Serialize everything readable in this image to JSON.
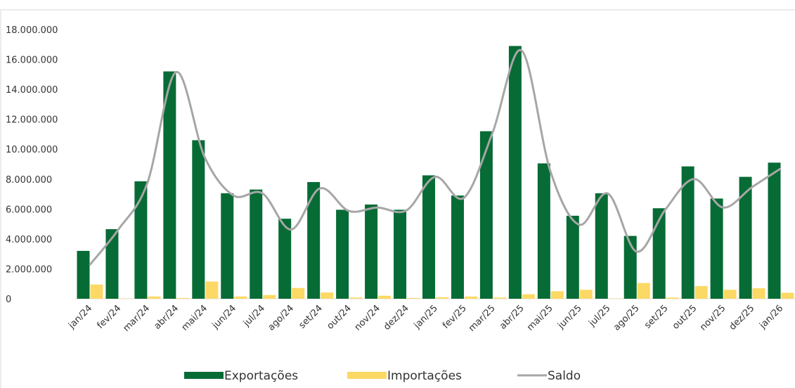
{
  "chart_data": {
    "type": "bar",
    "categories": [
      "jan/24",
      "fev/24",
      "mar/24",
      "abr/24",
      "mai/24",
      "jun/24",
      "jul/24",
      "ago/24",
      "set/24",
      "out/24",
      "nov/24",
      "dez/24",
      "jan/25",
      "fev/25",
      "mar/25",
      "abr/25",
      "mai/25",
      "jun/25",
      "jul/25",
      "ago/25",
      "set/25",
      "out/25",
      "nov/25",
      "dez/25",
      "jan/26"
    ],
    "series": [
      {
        "name": "Exportações",
        "color": "#076b35",
        "type": "bar",
        "values": [
          3200000,
          4650000,
          7850000,
          15200000,
          10600000,
          7050000,
          7300000,
          5350000,
          7800000,
          5950000,
          6300000,
          5950000,
          8250000,
          6900000,
          11200000,
          16900000,
          9050000,
          5550000,
          7050000,
          4200000,
          6050000,
          8850000,
          6700000,
          8150000,
          9100000
        ]
      },
      {
        "name": "Importações",
        "color": "#fcd965",
        "type": "bar",
        "values": [
          950000,
          20000,
          150000,
          50000,
          1150000,
          150000,
          250000,
          720000,
          420000,
          80000,
          200000,
          50000,
          100000,
          150000,
          80000,
          300000,
          500000,
          600000,
          20000,
          1050000,
          80000,
          850000,
          600000,
          700000,
          400000
        ]
      },
      {
        "name": "Saldo",
        "color": "#a6a6a6",
        "type": "line",
        "values": [
          2250000,
          4630000,
          7700000,
          15150000,
          9450000,
          6900000,
          7050000,
          4630000,
          7380000,
          5870000,
          6100000,
          5900000,
          8150000,
          6750000,
          11120000,
          16600000,
          8550000,
          4950000,
          7030000,
          3150000,
          5970000,
          8000000,
          6100000,
          7450000,
          8700000
        ]
      }
    ],
    "ylim": [
      0,
      18000000
    ],
    "yticks": [
      {
        "value": 0,
        "label": "0"
      },
      {
        "value": 2000000,
        "label": "2.000.000"
      },
      {
        "value": 4000000,
        "label": "4.000.000"
      },
      {
        "value": 6000000,
        "label": "6.000.000"
      },
      {
        "value": 8000000,
        "label": "8.000.000"
      },
      {
        "value": 10000000,
        "label": "10.000.000"
      },
      {
        "value": 12000000,
        "label": "12.000.000"
      },
      {
        "value": 14000000,
        "label": "14.000.000"
      },
      {
        "value": 16000000,
        "label": "16.000.000"
      },
      {
        "value": 18000000,
        "label": "18.000.000"
      }
    ],
    "legend": "bottom"
  }
}
